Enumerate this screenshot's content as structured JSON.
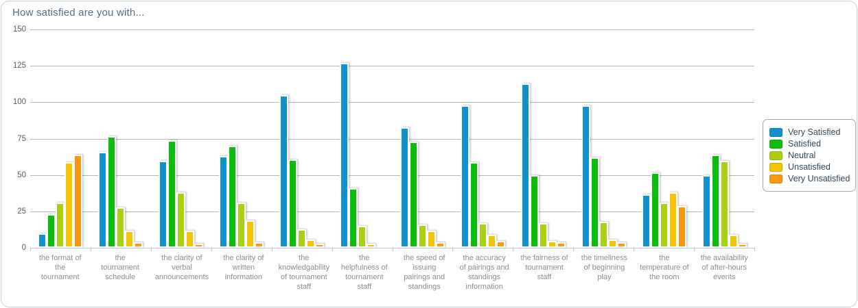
{
  "card": {
    "title_label": "How satisfied are you with..."
  },
  "chart_data": {
    "type": "bar",
    "title": "How satisfied are you with...",
    "categories": [
      "the format of the tournament",
      "the tournament schedule",
      "the clarity of verbal announcements",
      "the clarity of written information",
      "the knowledgability of tournament staff",
      "the helpfulness of tournament staff",
      "the speed of issuing pairings and standings",
      "the accuracy of pairings and standings information",
      "the fairness of tournament staff",
      "the timeliness of beginning play",
      "the temperature of the room",
      "the availability of after-hours events"
    ],
    "series": [
      {
        "name": "Very Satisfied",
        "color": "#1191d0",
        "values": [
          8,
          64,
          58,
          61,
          103,
          125,
          81,
          96,
          111,
          96,
          35,
          48
        ]
      },
      {
        "name": "Satisfied",
        "color": "#0dbd0d",
        "values": [
          21,
          75,
          72,
          68,
          59,
          39,
          71,
          57,
          48,
          60,
          50,
          62
        ]
      },
      {
        "name": "Neutral",
        "color": "#a9ce13",
        "values": [
          29,
          26,
          36,
          29,
          11,
          13,
          14,
          15,
          15,
          16,
          29,
          58
        ]
      },
      {
        "name": "Unsatisfied",
        "color": "#f5c400",
        "values": [
          57,
          10,
          10,
          17,
          4,
          1,
          10,
          7,
          3,
          4,
          36,
          7
        ]
      },
      {
        "name": "Very Unsatisfied",
        "color": "#fb9612",
        "values": [
          62,
          2,
          1,
          2,
          1,
          0,
          2,
          3,
          2,
          2,
          27,
          1
        ]
      }
    ],
    "ylim": [
      0,
      150
    ],
    "yticks": [
      0,
      25,
      50,
      75,
      100,
      125,
      150
    ],
    "grid": true,
    "legend_position": "right"
  }
}
